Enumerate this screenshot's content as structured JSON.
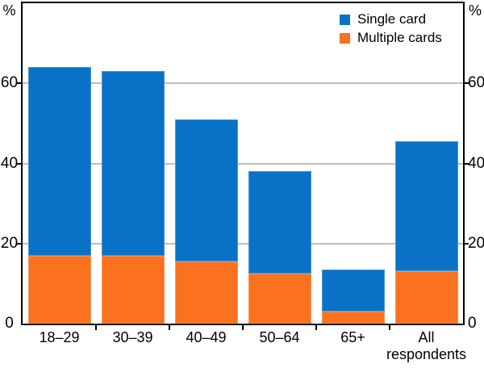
{
  "chart_data": {
    "type": "bar",
    "stacked": true,
    "title": "",
    "categories": [
      "18–29",
      "30–39",
      "40–49",
      "50–64",
      "65+",
      "All\nrespondents"
    ],
    "series": [
      {
        "name": "Multiple cards",
        "color": "#fa7120",
        "values": [
          17,
          17,
          15.5,
          12.5,
          3,
          13
        ]
      },
      {
        "name": "Single card",
        "color": "#0a72c6",
        "values": [
          47,
          46,
          35.5,
          25.5,
          10.5,
          32.5
        ]
      }
    ],
    "totals": [
      64,
      63,
      51,
      38,
      13.5,
      45.5
    ],
    "xlabel": "",
    "ylabel_left": "%",
    "ylabel_right": "%",
    "yticks": [
      0,
      20,
      40,
      60
    ],
    "ylim": [
      0,
      80
    ],
    "grid": true,
    "legend_position": "top-right"
  },
  "axes": {
    "unit_left": "%",
    "unit_right": "%",
    "tick_labels": [
      "0",
      "20",
      "40",
      "60"
    ]
  },
  "legend": {
    "items": [
      {
        "label": "Single card",
        "color": "#0a72c6"
      },
      {
        "label": "Multiple cards",
        "color": "#fa7120"
      }
    ]
  },
  "colors": {
    "single": "#0a72c6",
    "multiple": "#fa7120",
    "gridline": "#bfbfbf",
    "axis": "#000000",
    "background": "#ffffff",
    "text": "#000000"
  }
}
